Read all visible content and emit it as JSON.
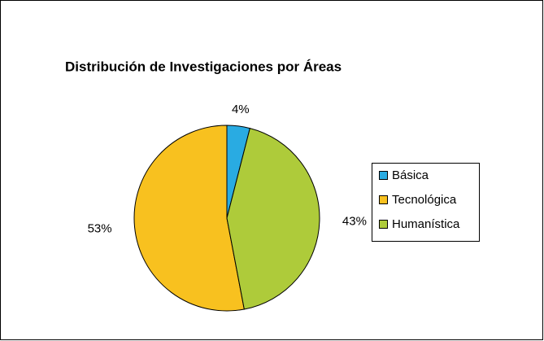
{
  "chart_data": {
    "type": "pie",
    "title": "Distribución de Investigaciones por Áreas",
    "categories": [
      "Básica",
      "Tecnológica",
      "Humanística"
    ],
    "values": [
      4,
      53,
      43
    ],
    "value_labels": [
      "4%",
      "53%",
      "43%"
    ],
    "colors": [
      "#29abe2",
      "#f8c11f",
      "#aecb3a"
    ],
    "legend": "right"
  }
}
